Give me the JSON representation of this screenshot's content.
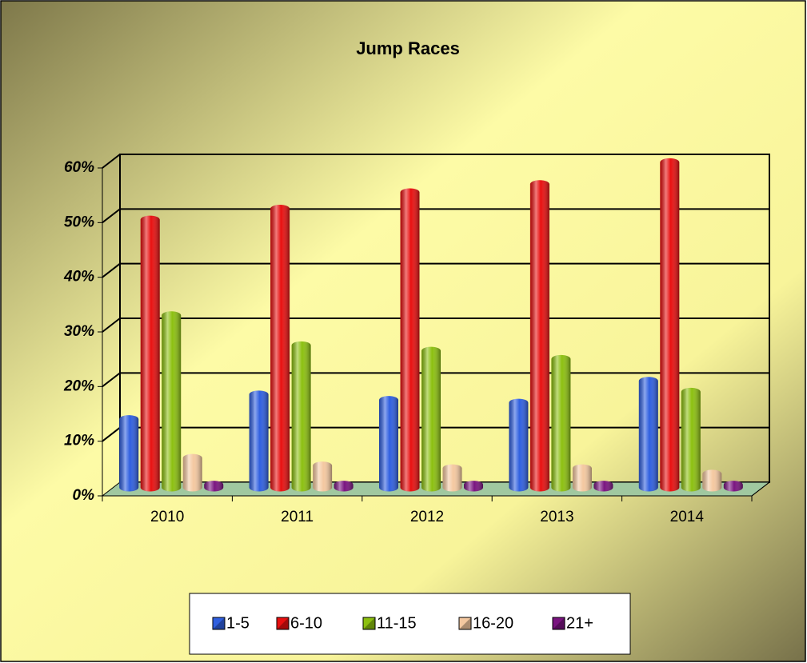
{
  "chart_data": {
    "type": "bar3d",
    "title": "Jump Races",
    "categories": [
      "2010",
      "2011",
      "2012",
      "2013",
      "2014"
    ],
    "series": [
      {
        "name": "1-5",
        "color": "#2f5fe0",
        "values": [
          12.5,
          17,
          16,
          15.5,
          19.5
        ]
      },
      {
        "name": "6-10",
        "color": "#e81010",
        "values": [
          49,
          51,
          54,
          55.5,
          59.5
        ]
      },
      {
        "name": "11-15",
        "color": "#8cc010",
        "values": [
          31.5,
          26,
          25,
          23.5,
          17.5
        ]
      },
      {
        "name": "16-20",
        "color": "#f4c8a0",
        "values": [
          5.4,
          4,
          3.5,
          3.5,
          2.5
        ]
      },
      {
        "name": "21+",
        "color": "#7a1480",
        "values": [
          0.5,
          0.5,
          0.5,
          0.5,
          0.5
        ]
      }
    ],
    "ylim": [
      0,
      60
    ],
    "yticks": [
      {
        "value": 0,
        "label": "0%"
      },
      {
        "value": 10,
        "label": "10%"
      },
      {
        "value": 20,
        "label": "20%"
      },
      {
        "value": 30,
        "label": "30%"
      },
      {
        "value": 40,
        "label": "40%"
      },
      {
        "value": 50,
        "label": "50%"
      },
      {
        "value": 60,
        "label": "60%"
      }
    ],
    "grid": true,
    "legend": "bottom"
  }
}
